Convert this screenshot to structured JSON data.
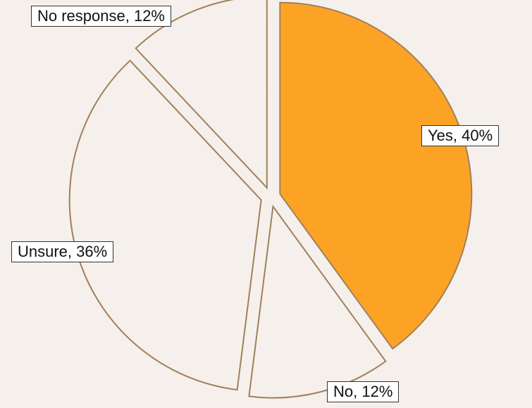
{
  "chart_data": {
    "type": "pie",
    "start_angle_deg": 0,
    "direction": "clockwise",
    "exploded": true,
    "slices": [
      {
        "label": "Yes",
        "value": 40,
        "color": "#fca326",
        "display": "Yes, 40%"
      },
      {
        "label": "No",
        "value": 12,
        "color": "#f5f0ec",
        "display": "No, 12%"
      },
      {
        "label": "Unsure",
        "value": 36,
        "color": "#f5f0ec",
        "display": "Unsure, 36%"
      },
      {
        "label": "No response",
        "value": 12,
        "color": "#f5f0ec",
        "display": "No response, 12%"
      }
    ],
    "slice_outline_color": "#a0805a",
    "background_color": "#f5f0ec"
  }
}
